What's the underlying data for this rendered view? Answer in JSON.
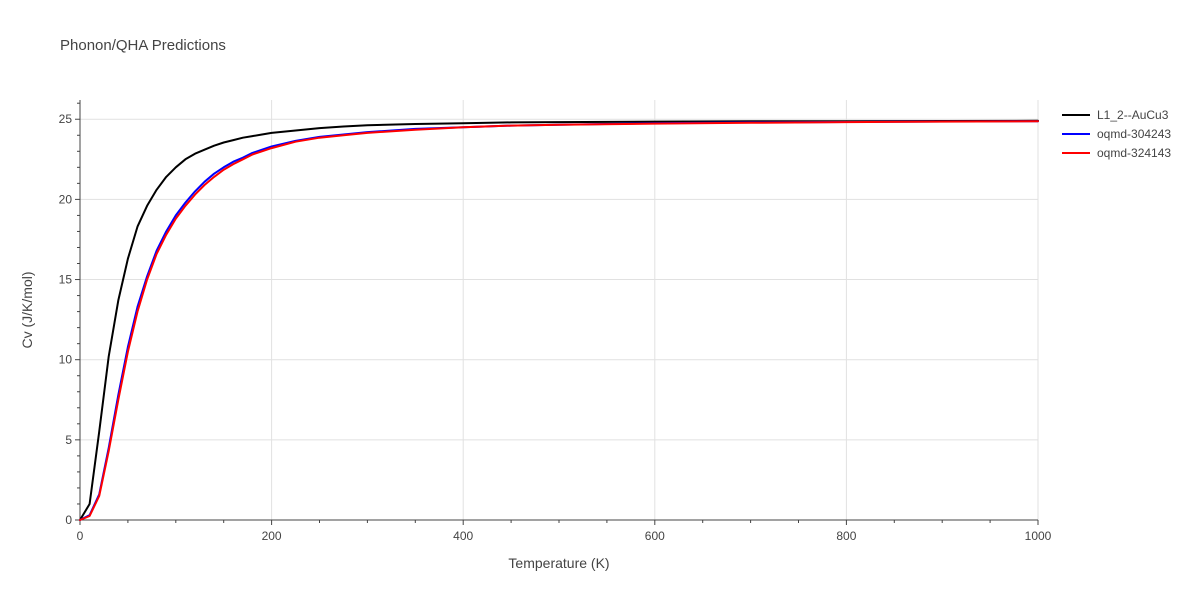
{
  "chart_data": {
    "type": "line",
    "title": "Phonon/QHA Predictions",
    "xlabel": "Temperature (K)",
    "ylabel": "Cv (J/K/mol)",
    "xlim": [
      0,
      1000
    ],
    "ylim": [
      0,
      26.2
    ],
    "x_ticks": [
      0,
      200,
      400,
      600,
      800,
      1000
    ],
    "y_ticks": [
      0,
      5,
      10,
      15,
      20,
      25
    ],
    "grid": true,
    "legend_position": "top-right",
    "series": [
      {
        "name": "L1_2--AuCu3",
        "color": "#000000",
        "x": [
          0,
          10,
          20,
          30,
          40,
          50,
          60,
          70,
          80,
          90,
          100,
          110,
          120,
          130,
          140,
          150,
          160,
          170,
          180,
          190,
          200,
          225,
          250,
          275,
          300,
          350,
          400,
          450,
          500,
          600,
          700,
          800,
          900,
          1000
        ],
        "y": [
          0,
          1.0,
          5.5,
          10.2,
          13.7,
          16.3,
          18.3,
          19.6,
          20.6,
          21.4,
          22.0,
          22.5,
          22.85,
          23.1,
          23.35,
          23.55,
          23.7,
          23.85,
          23.95,
          24.05,
          24.15,
          24.3,
          24.45,
          24.55,
          24.62,
          24.7,
          24.75,
          24.8,
          24.82,
          24.85,
          24.87,
          24.88,
          24.89,
          24.9
        ]
      },
      {
        "name": "oqmd-304243",
        "color": "#0000ff",
        "x": [
          0,
          10,
          20,
          30,
          40,
          50,
          60,
          70,
          80,
          90,
          100,
          110,
          120,
          130,
          140,
          150,
          160,
          170,
          180,
          190,
          200,
          225,
          250,
          275,
          300,
          350,
          400,
          450,
          500,
          600,
          700,
          800,
          900,
          1000
        ],
        "y": [
          0,
          0.3,
          1.6,
          4.5,
          7.8,
          10.8,
          13.3,
          15.2,
          16.8,
          18.0,
          19.0,
          19.8,
          20.5,
          21.1,
          21.6,
          22.0,
          22.35,
          22.6,
          22.9,
          23.1,
          23.3,
          23.65,
          23.9,
          24.05,
          24.2,
          24.4,
          24.5,
          24.6,
          24.65,
          24.75,
          24.8,
          24.83,
          24.86,
          24.88
        ]
      },
      {
        "name": "oqmd-324143",
        "color": "#ff0000",
        "x": [
          0,
          10,
          20,
          30,
          40,
          50,
          60,
          70,
          80,
          90,
          100,
          110,
          120,
          130,
          140,
          150,
          160,
          170,
          180,
          190,
          200,
          225,
          250,
          275,
          300,
          350,
          400,
          450,
          500,
          600,
          700,
          800,
          900,
          1000
        ],
        "y": [
          0,
          0.25,
          1.5,
          4.3,
          7.5,
          10.5,
          13.0,
          15.0,
          16.6,
          17.8,
          18.8,
          19.6,
          20.3,
          20.9,
          21.4,
          21.85,
          22.2,
          22.5,
          22.8,
          23.0,
          23.2,
          23.6,
          23.85,
          24.0,
          24.15,
          24.35,
          24.5,
          24.6,
          24.65,
          24.73,
          24.78,
          24.82,
          24.85,
          24.87
        ]
      }
    ]
  }
}
